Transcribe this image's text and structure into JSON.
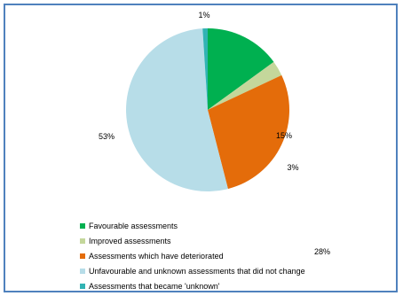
{
  "chart_data": {
    "type": "pie",
    "title": "",
    "slices": [
      {
        "label": "Favourable assessments",
        "value": 15,
        "value_label": "15%",
        "color": "#00b050"
      },
      {
        "label": "Improved assessments",
        "value": 3,
        "value_label": "3%",
        "color": "#c4d79b"
      },
      {
        "label": "Assessments which have deteriorated",
        "value": 28,
        "value_label": "28%",
        "color": "#e46c0a"
      },
      {
        "label": "Unfavourable and unknown assessments that did not change",
        "value": 53,
        "value_label": "53%",
        "color": "#b7dde8"
      },
      {
        "label": "Assessments that became 'unknown'",
        "value": 1,
        "value_label": "1%",
        "color": "#31b3b3"
      }
    ],
    "start_angle_deg": 0,
    "direction": "clockwise",
    "legend_position": "bottom-left",
    "border_color": "#4f81bd"
  }
}
